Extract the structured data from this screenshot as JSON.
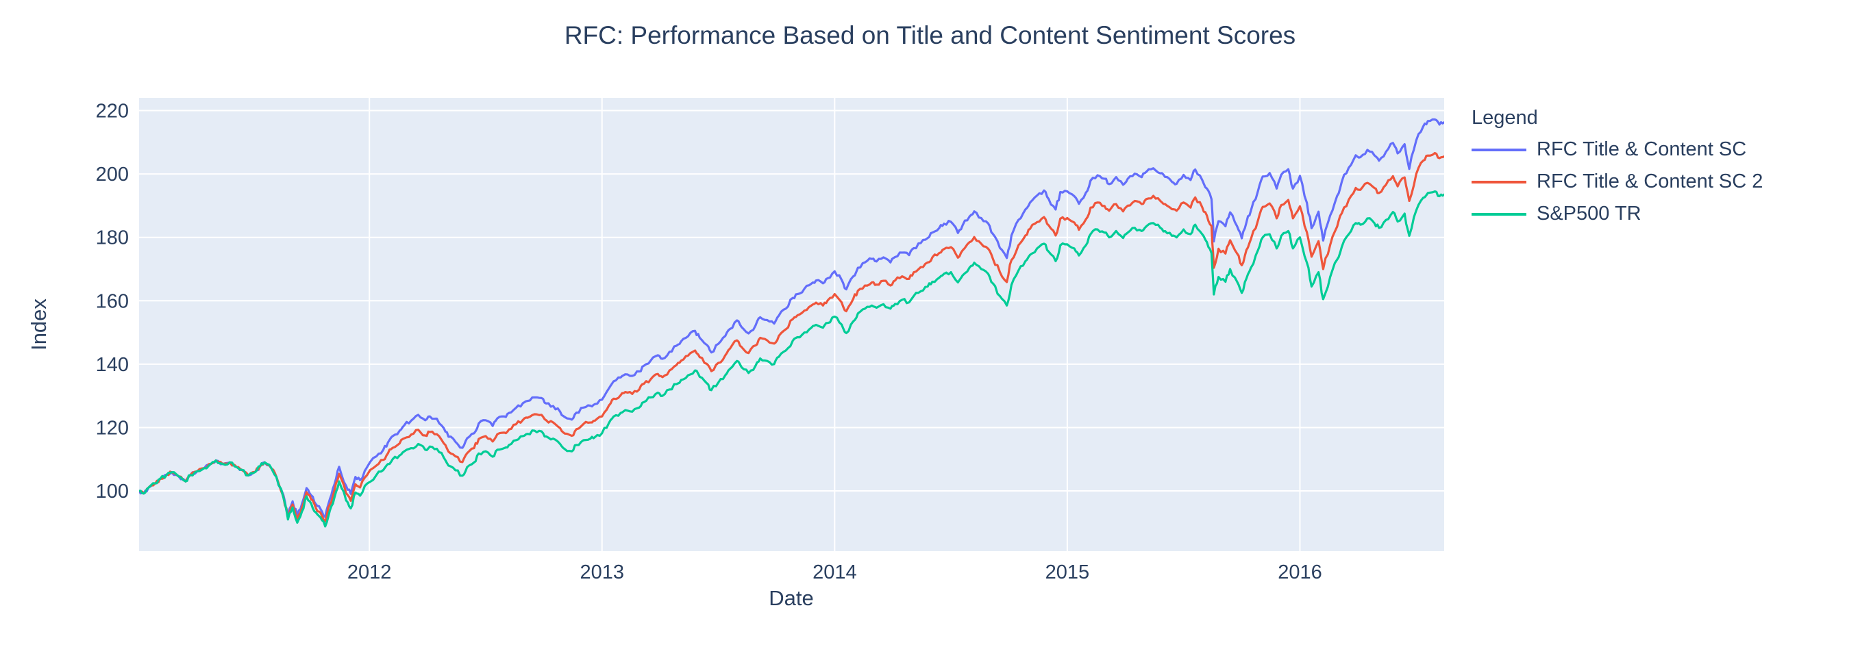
{
  "title": "RFC: Performance Based on Title and Content Sentiment Scores",
  "colors": {
    "text": "#2a3f5f",
    "plot_background": "#E5ECF6",
    "grid": "#ffffff",
    "page_background": "#ffffff"
  },
  "legend": {
    "title": "Legend"
  },
  "chart_data": {
    "type": "line",
    "title": "RFC: Performance Based on Title and Content Sentiment Scores",
    "xlabel": "Date",
    "ylabel": "Index",
    "legend_title": "Legend",
    "grid": true,
    "legend_position": "right-top",
    "x_range": [
      2011.01,
      2016.62
    ],
    "y_range": [
      81,
      224
    ],
    "x_ticks": [
      2012,
      2013,
      2014,
      2015,
      2016
    ],
    "x_tick_labels": [
      "2012",
      "2013",
      "2014",
      "2015",
      "2016"
    ],
    "y_ticks": [
      100,
      120,
      140,
      160,
      180,
      200,
      220
    ],
    "y_tick_labels": [
      "100",
      "120",
      "140",
      "160",
      "180",
      "200",
      "220"
    ],
    "x": [
      2011.01,
      2011.03,
      2011.05,
      2011.08,
      2011.1,
      2011.13,
      2011.15,
      2011.18,
      2011.21,
      2011.23,
      2011.26,
      2011.29,
      2011.32,
      2011.34,
      2011.37,
      2011.4,
      2011.43,
      2011.45,
      2011.48,
      2011.51,
      2011.53,
      2011.55,
      2011.58,
      2011.6,
      2011.63,
      2011.65,
      2011.67,
      2011.69,
      2011.71,
      2011.73,
      2011.75,
      2011.77,
      2011.79,
      2011.81,
      2011.83,
      2011.85,
      2011.87,
      2011.9,
      2011.92,
      2011.94,
      2011.96,
      2011.99,
      2012.03,
      2012.06,
      2012.08,
      2012.1,
      2012.13,
      2012.15,
      2012.18,
      2012.21,
      2012.24,
      2012.26,
      2012.29,
      2012.32,
      2012.34,
      2012.37,
      2012.4,
      2012.42,
      2012.45,
      2012.47,
      2012.5,
      2012.53,
      2012.55,
      2012.58,
      2012.6,
      2012.63,
      2012.66,
      2012.68,
      2012.71,
      2012.74,
      2012.76,
      2012.79,
      2012.82,
      2012.84,
      2012.87,
      2012.89,
      2012.92,
      2012.95,
      2012.97,
      2013.0,
      2013.03,
      2013.05,
      2013.08,
      2013.1,
      2013.13,
      2013.16,
      2013.18,
      2013.21,
      2013.24,
      2013.26,
      2013.29,
      2013.32,
      2013.34,
      2013.37,
      2013.4,
      2013.42,
      2013.45,
      2013.47,
      2013.5,
      2013.53,
      2013.55,
      2013.58,
      2013.6,
      2013.63,
      2013.66,
      2013.68,
      2013.71,
      2013.74,
      2013.76,
      2013.79,
      2013.82,
      2013.84,
      2013.87,
      2013.9,
      2013.92,
      2013.95,
      2013.97,
      2014.0,
      2014.03,
      2014.05,
      2014.08,
      2014.1,
      2014.13,
      2014.16,
      2014.18,
      2014.21,
      2014.24,
      2014.26,
      2014.29,
      2014.32,
      2014.34,
      2014.37,
      2014.4,
      2014.42,
      2014.45,
      2014.47,
      2014.5,
      2014.53,
      2014.55,
      2014.58,
      2014.6,
      2014.63,
      2014.66,
      2014.68,
      2014.71,
      2014.74,
      2014.76,
      2014.79,
      2014.82,
      2014.84,
      2014.87,
      2014.9,
      2014.92,
      2014.95,
      2014.97,
      2015.0,
      2015.03,
      2015.05,
      2015.08,
      2015.1,
      2015.13,
      2015.16,
      2015.18,
      2015.21,
      2015.24,
      2015.26,
      2015.29,
      2015.32,
      2015.34,
      2015.37,
      2015.4,
      2015.42,
      2015.45,
      2015.47,
      2015.5,
      2015.53,
      2015.55,
      2015.58,
      2015.6,
      2015.62,
      2015.63,
      2015.65,
      2015.68,
      2015.7,
      2015.73,
      2015.75,
      2015.77,
      2015.79,
      2015.82,
      2015.84,
      2015.87,
      2015.9,
      2015.92,
      2015.95,
      2015.97,
      2016.0,
      2016.03,
      2016.05,
      2016.08,
      2016.1,
      2016.13,
      2016.16,
      2016.18,
      2016.21,
      2016.24,
      2016.26,
      2016.29,
      2016.32,
      2016.34,
      2016.37,
      2016.4,
      2016.42,
      2016.45,
      2016.47,
      2016.5,
      2016.53,
      2016.55,
      2016.58,
      2016.6,
      2016.62
    ],
    "series": [
      {
        "name": "RFC Title & Content SC",
        "color": "#636EFA",
        "values": [
          100.0,
          99.2,
          101.0,
          102.4,
          103.8,
          105.2,
          105.9,
          104.6,
          103.0,
          105.0,
          106.2,
          107.2,
          108.6,
          109.6,
          108.5,
          109.0,
          107.5,
          106.7,
          104.9,
          106.0,
          107.8,
          109.0,
          107.0,
          104.5,
          98.8,
          92.5,
          96.7,
          92.2,
          95.9,
          100.9,
          98.6,
          95.8,
          94.3,
          91.8,
          97.4,
          102.1,
          107.6,
          101.6,
          99.1,
          104.4,
          103.4,
          107.5,
          110.9,
          113.0,
          115.3,
          117.3,
          119.0,
          120.7,
          122.2,
          124.0,
          122.3,
          123.5,
          122.8,
          119.8,
          117.1,
          115.5,
          113.6,
          116.6,
          118.2,
          121.3,
          122.3,
          120.5,
          122.9,
          123.5,
          124.6,
          126.2,
          127.7,
          128.4,
          129.5,
          129.3,
          127.6,
          126.8,
          125.0,
          123.3,
          122.5,
          124.7,
          126.3,
          126.9,
          127.4,
          128.8,
          132.4,
          134.6,
          135.8,
          136.8,
          136.3,
          137.7,
          139.5,
          141.2,
          142.8,
          141.7,
          143.9,
          145.8,
          147.2,
          148.8,
          150.5,
          148.3,
          146.1,
          143.7,
          146.4,
          148.9,
          151.1,
          153.8,
          151.7,
          149.7,
          152.2,
          154.8,
          153.9,
          152.8,
          155.3,
          157.5,
          160.9,
          162.1,
          163.8,
          165.4,
          166.4,
          165.5,
          167.1,
          169.3,
          166.6,
          163.6,
          167.7,
          170.4,
          172.1,
          173.2,
          172.4,
          173.7,
          172.1,
          173.8,
          175.2,
          174.4,
          176.6,
          178.2,
          179.8,
          181.5,
          183.0,
          184.3,
          184.9,
          181.4,
          183.8,
          186.6,
          188.2,
          186.1,
          184.4,
          181.1,
          176.7,
          173.5,
          180.6,
          185.5,
          188.8,
          191.0,
          193.2,
          194.8,
          192.1,
          188.8,
          194.3,
          194.5,
          193.0,
          190.6,
          194.1,
          197.9,
          199.6,
          198.5,
          196.8,
          199.0,
          196.6,
          198.5,
          200.1,
          199.0,
          200.7,
          201.8,
          200.2,
          199.1,
          197.5,
          196.9,
          199.7,
          198.1,
          201.4,
          198.1,
          195.4,
          192.0,
          178.7,
          185.1,
          183.5,
          187.9,
          183.5,
          179.7,
          184.7,
          188.6,
          194.7,
          199.2,
          200.3,
          195.4,
          199.8,
          201.5,
          195.4,
          199.4,
          190.9,
          182.9,
          188.1,
          179.0,
          186.9,
          193.1,
          197.6,
          202.0,
          205.9,
          205.3,
          207.6,
          205.9,
          204.2,
          207.0,
          209.8,
          206.5,
          209.4,
          201.6,
          210.6,
          215.0,
          216.7,
          217.2,
          215.6,
          216.3
        ]
      },
      {
        "name": "RFC Title & Content SC 2",
        "color": "#EF553B",
        "values": [
          100.0,
          99.2,
          101.0,
          102.4,
          103.8,
          105.2,
          105.9,
          104.6,
          103.0,
          105.0,
          106.2,
          107.2,
          108.6,
          109.6,
          108.5,
          109.0,
          107.5,
          106.7,
          104.9,
          106.0,
          107.8,
          109.0,
          107.0,
          104.5,
          98.4,
          91.7,
          95.7,
          91.1,
          94.7,
          99.6,
          97.3,
          94.6,
          93.1,
          90.4,
          95.7,
          100.2,
          105.4,
          99.3,
          96.9,
          102.1,
          101.1,
          105.0,
          108.0,
          109.8,
          111.9,
          113.6,
          115.0,
          116.6,
          117.8,
          119.3,
          117.5,
          118.6,
          117.9,
          115.0,
          112.4,
          110.9,
          109.1,
          111.9,
          113.5,
          116.4,
          117.3,
          115.6,
          117.9,
          118.4,
          119.4,
          121.0,
          122.4,
          123.1,
          124.2,
          124.0,
          122.3,
          121.6,
          119.8,
          118.1,
          117.4,
          119.5,
          121.1,
          121.6,
          122.2,
          123.5,
          127.0,
          129.1,
          130.2,
          131.2,
          130.6,
          132.0,
          133.8,
          135.3,
          136.9,
          135.9,
          138.0,
          139.7,
          141.1,
          142.7,
          144.3,
          142.2,
          140.1,
          137.8,
          140.4,
          142.8,
          144.9,
          147.5,
          145.4,
          143.5,
          145.9,
          148.3,
          147.5,
          146.5,
          148.9,
          151.0,
          154.2,
          155.4,
          156.9,
          158.5,
          159.4,
          158.5,
          160.1,
          162.1,
          159.5,
          156.7,
          160.6,
          163.2,
          164.8,
          165.8,
          165.1,
          166.3,
          164.8,
          166.4,
          167.7,
          166.9,
          169.0,
          170.6,
          172.1,
          173.7,
          175.1,
          176.3,
          176.9,
          173.6,
          175.9,
          178.5,
          180.1,
          178.0,
          176.4,
          173.3,
          169.1,
          165.9,
          172.8,
          177.5,
          180.6,
          182.7,
          184.8,
          186.4,
          183.8,
          180.6,
          185.9,
          186.1,
          184.7,
          182.4,
          185.7,
          189.4,
          191.0,
          189.9,
          188.4,
          190.5,
          188.2,
          190.0,
          191.5,
          190.5,
          192.1,
          193.1,
          191.5,
          190.5,
          188.9,
          188.4,
          191.0,
          189.4,
          192.6,
          189.5,
          186.9,
          183.6,
          170.4,
          176.4,
          174.9,
          179.1,
          174.9,
          171.2,
          176.0,
          179.6,
          185.4,
          189.6,
          190.7,
          186.0,
          190.2,
          191.8,
          186.0,
          189.8,
          181.6,
          173.9,
          178.8,
          170.0,
          177.6,
          183.4,
          187.6,
          191.9,
          195.6,
          195.0,
          197.2,
          195.6,
          194.0,
          196.6,
          199.3,
          196.1,
          198.9,
          191.5,
          200.0,
          204.2,
          205.8,
          206.6,
          205.0,
          205.5
        ]
      },
      {
        "name": "S&P500 TR",
        "color": "#00CC96",
        "values": [
          100.0,
          99.2,
          101.0,
          102.4,
          103.8,
          105.2,
          105.9,
          104.6,
          103.0,
          105.0,
          106.2,
          107.2,
          108.6,
          109.6,
          108.5,
          109.0,
          107.5,
          106.7,
          104.9,
          106.0,
          107.8,
          109.0,
          107.0,
          104.5,
          98.0,
          91.0,
          94.8,
          90.0,
          93.5,
          98.3,
          96.0,
          93.2,
          91.6,
          88.8,
          93.8,
          98.0,
          103.0,
          97.0,
          94.5,
          99.5,
          98.5,
          102.3,
          105.0,
          106.6,
          108.5,
          110.0,
          111.2,
          112.5,
          113.5,
          114.8,
          113.0,
          114.0,
          113.3,
          110.5,
          108.0,
          106.5,
          104.8,
          107.5,
          109.0,
          111.8,
          112.5,
          110.8,
          113.0,
          113.5,
          114.5,
          116.0,
          117.3,
          118.0,
          119.0,
          118.8,
          117.2,
          116.5,
          114.8,
          113.2,
          112.5,
          114.5,
          116.0,
          116.5,
          117.0,
          118.2,
          121.5,
          123.5,
          124.6,
          125.5,
          125.0,
          126.3,
          128.0,
          129.5,
          131.0,
          130.0,
          132.0,
          133.7,
          135.0,
          136.5,
          138.0,
          136.0,
          134.0,
          131.8,
          134.2,
          136.5,
          138.5,
          141.0,
          139.0,
          137.2,
          139.5,
          141.8,
          141.0,
          140.0,
          142.3,
          144.3,
          147.4,
          148.5,
          150.0,
          151.5,
          152.4,
          151.5,
          153.0,
          155.0,
          152.5,
          149.8,
          153.5,
          156.0,
          157.5,
          158.5,
          157.8,
          158.9,
          157.5,
          159.0,
          160.3,
          159.5,
          161.5,
          163.0,
          164.5,
          166.0,
          167.3,
          168.5,
          169.0,
          165.8,
          168.0,
          170.5,
          172.0,
          170.0,
          168.5,
          165.5,
          161.5,
          158.5,
          165.0,
          169.5,
          172.5,
          174.5,
          176.5,
          178.0,
          175.5,
          172.5,
          177.5,
          177.8,
          176.5,
          174.3,
          177.5,
          181.0,
          182.5,
          181.5,
          180.0,
          182.0,
          179.8,
          181.5,
          183.0,
          182.0,
          183.5,
          184.5,
          183.0,
          182.0,
          180.5,
          180.0,
          182.5,
          181.0,
          184.0,
          181.0,
          178.5,
          175.0,
          162.0,
          167.5,
          166.0,
          170.0,
          166.0,
          162.5,
          167.0,
          170.5,
          176.0,
          180.0,
          181.0,
          176.5,
          180.5,
          182.0,
          176.5,
          180.0,
          172.0,
          164.5,
          169.0,
          160.5,
          167.5,
          173.0,
          177.0,
          181.0,
          184.5,
          184.0,
          186.0,
          184.5,
          183.0,
          185.5,
          188.0,
          185.0,
          187.5,
          180.5,
          188.5,
          192.5,
          194.0,
          194.5,
          193.0,
          193.5
        ]
      }
    ]
  }
}
